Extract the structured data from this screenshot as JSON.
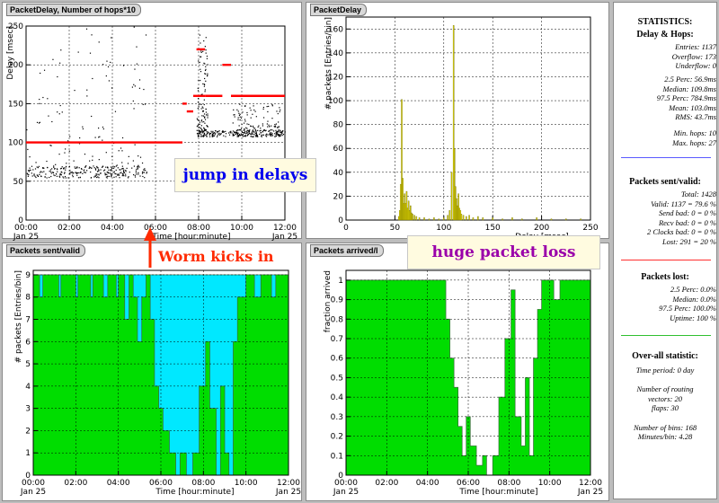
{
  "panels": {
    "tl": {
      "title": "PacketDelay, Number of hops*10"
    },
    "tr": {
      "title": "PacketDelay"
    },
    "bl": {
      "title": "Packets sent/valid"
    },
    "br": {
      "title": "Packets arrived/l"
    }
  },
  "annotations": {
    "jump": "jump in delays",
    "worm": "Worm kicks in",
    "loss": "huge packet loss"
  },
  "stats": {
    "title": "STATISTICS:",
    "delay_header": "Delay & Hops:",
    "delay_lines": [
      "Entries: 1137",
      "Overflow: 173",
      "Underflow: 0"
    ],
    "perc_lines": [
      "2.5 Perc:     56.9ms",
      "Median:   109.8ms",
      "97.5 Perc:   784.9ms",
      "Mean:   103.0ms",
      "RMS:     43.7ms"
    ],
    "hops_lines": [
      "Min. hops: 10",
      "Max. hops: 27"
    ],
    "sent_header": "Packets sent/valid:",
    "sent_lines": [
      "Total: 1428",
      "Valid: 1137 = 79.6 %",
      "Send bad: 0 = 0 %",
      "Recv bad: 0 = 0 %",
      "2 Clocks bad: 0 = 0 %",
      "Lost: 291 = 20 %"
    ],
    "lost_header": "Packets lost:",
    "lost_lines": [
      "2.5 Perc:      0.0%",
      "Median:      0.0%",
      "97.5 Perc:  100.0%",
      "Uptime: 100 %"
    ],
    "overall_header": "Over-all statistic:",
    "overall_lines": [
      "Time period: 0 day",
      "",
      "Number of routing",
      "vectors: 20",
      "flaps: 30",
      "",
      "Number of bins: 168",
      "Minutes/bin: 4.28"
    ],
    "colors": {
      "blue": "#5a5aff",
      "red": "#ff3030",
      "green": "#30c030"
    }
  },
  "chart_data": [
    {
      "type": "scatter",
      "id": "tl",
      "title": "PacketDelay, Number of hops*10",
      "xlabel": "Time [hour:minute]",
      "ylabel": "Delay [msec]",
      "xticks": [
        "00:00",
        "02:00",
        "04:00",
        "06:00",
        "08:00",
        "10:00",
        "12:00"
      ],
      "xsub": "Jan 25",
      "xlim": [
        0,
        12
      ],
      "ylim": [
        0,
        250
      ],
      "yticks": [
        0,
        50,
        100,
        150,
        200,
        250
      ],
      "grid": true,
      "series": [
        {
          "role": "delay",
          "color": "#000000",
          "clusters": [
            {
              "x": [
                0.0,
                5.6
              ],
              "y": [
                55,
                70
              ],
              "note": "dense band"
            },
            {
              "x": [
                0.0,
                5.6
              ],
              "y": [
                70,
                250
              ],
              "note": "sparse"
            },
            {
              "x": [
                7.9,
                12.0
              ],
              "y": [
                108,
                116
              ],
              "note": "dense band"
            },
            {
              "x": [
                7.9,
                8.4
              ],
              "y": [
                116,
                240
              ],
              "note": "sparse"
            },
            {
              "x": [
                9.5,
                11.8
              ],
              "y": [
                116,
                150
              ],
              "note": "sparse"
            }
          ]
        },
        {
          "role": "hops",
          "color": "#ff0000",
          "segments": [
            {
              "x": [
                0.0,
                7.25
              ],
              "y": 100
            },
            {
              "x": [
                7.25,
                7.45
              ],
              "y": 150
            },
            {
              "x": [
                7.45,
                7.75
              ],
              "y": 140
            },
            {
              "x": [
                7.75,
                8.3
              ],
              "y": 160
            },
            {
              "x": [
                7.9,
                8.3
              ],
              "y": 220
            },
            {
              "x": [
                8.3,
                9.1
              ],
              "y": 160
            },
            {
              "x": [
                9.1,
                9.5
              ],
              "y": 200
            },
            {
              "x": [
                9.5,
                12.0
              ],
              "y": 160
            }
          ]
        }
      ]
    },
    {
      "type": "bar",
      "id": "tr",
      "title": "PacketDelay",
      "xlabel": "Delay [msec]",
      "ylabel": "# packets [Entries/bin]",
      "xlim": [
        0,
        250
      ],
      "ylim": [
        0,
        170
      ],
      "xticks": [
        0,
        50,
        100,
        150,
        200,
        250
      ],
      "yticks": [
        0,
        20,
        40,
        60,
        80,
        100,
        120,
        140,
        160
      ],
      "grid": true,
      "bar_color": "#f2e400",
      "peaks": [
        {
          "x": 57,
          "value": 101
        },
        {
          "x": 110,
          "value": 163
        }
      ],
      "bins": [
        {
          "x": 54,
          "value": 3
        },
        {
          "x": 55,
          "value": 8
        },
        {
          "x": 56,
          "value": 30
        },
        {
          "x": 57,
          "value": 101
        },
        {
          "x": 58,
          "value": 35
        },
        {
          "x": 59,
          "value": 14
        },
        {
          "x": 60,
          "value": 22
        },
        {
          "x": 61,
          "value": 14
        },
        {
          "x": 62,
          "value": 24
        },
        {
          "x": 63,
          "value": 10
        },
        {
          "x": 64,
          "value": 16
        },
        {
          "x": 65,
          "value": 8
        },
        {
          "x": 66,
          "value": 12
        },
        {
          "x": 67,
          "value": 6
        },
        {
          "x": 68,
          "value": 5
        },
        {
          "x": 70,
          "value": 4
        },
        {
          "x": 72,
          "value": 3
        },
        {
          "x": 75,
          "value": 2
        },
        {
          "x": 80,
          "value": 2
        },
        {
          "x": 85,
          "value": 1
        },
        {
          "x": 90,
          "value": 2
        },
        {
          "x": 95,
          "value": 1
        },
        {
          "x": 100,
          "value": 2
        },
        {
          "x": 104,
          "value": 4
        },
        {
          "x": 106,
          "value": 8
        },
        {
          "x": 108,
          "value": 40
        },
        {
          "x": 110,
          "value": 163
        },
        {
          "x": 111,
          "value": 60
        },
        {
          "x": 112,
          "value": 28
        },
        {
          "x": 113,
          "value": 18
        },
        {
          "x": 114,
          "value": 12
        },
        {
          "x": 115,
          "value": 22
        },
        {
          "x": 116,
          "value": 10
        },
        {
          "x": 117,
          "value": 8
        },
        {
          "x": 118,
          "value": 5
        },
        {
          "x": 120,
          "value": 4
        },
        {
          "x": 123,
          "value": 3
        },
        {
          "x": 126,
          "value": 4
        },
        {
          "x": 130,
          "value": 2
        },
        {
          "x": 135,
          "value": 3
        },
        {
          "x": 140,
          "value": 2
        },
        {
          "x": 150,
          "value": 2
        },
        {
          "x": 160,
          "value": 1
        },
        {
          "x": 170,
          "value": 2
        },
        {
          "x": 180,
          "value": 1
        },
        {
          "x": 195,
          "value": 2
        },
        {
          "x": 210,
          "value": 1
        },
        {
          "x": 225,
          "value": 1
        },
        {
          "x": 240,
          "value": 1
        }
      ]
    },
    {
      "type": "area",
      "id": "bl",
      "title": "Packets sent/valid",
      "xlabel": "Time [hour:minute]",
      "ylabel": "# packets [Entries/bin]",
      "xticks": [
        "00:00",
        "02:00",
        "04:00",
        "06:00",
        "08:00",
        "10:00",
        "12:00"
      ],
      "xsub": "Jan 25",
      "xlim": [
        0,
        12
      ],
      "ylim": [
        0,
        9.2
      ],
      "yticks": [
        0,
        1,
        2,
        3,
        4,
        5,
        6,
        7,
        8,
        9
      ],
      "grid": true,
      "series": [
        {
          "name": "sent",
          "color": "#00e8ff",
          "steps": [
            [
              0,
              9
            ],
            [
              12,
              9
            ]
          ]
        },
        {
          "name": "valid",
          "color": "#00dd00",
          "steps": [
            [
              0,
              9
            ],
            [
              0.3,
              8
            ],
            [
              0.45,
              9
            ],
            [
              1.2,
              8
            ],
            [
              1.3,
              9
            ],
            [
              2.0,
              8
            ],
            [
              2.1,
              9
            ],
            [
              2.7,
              8
            ],
            [
              2.8,
              9
            ],
            [
              3.3,
              8
            ],
            [
              3.5,
              9
            ],
            [
              3.9,
              8
            ],
            [
              4.0,
              9
            ],
            [
              4.3,
              7
            ],
            [
              4.5,
              9
            ],
            [
              4.7,
              8
            ],
            [
              4.9,
              6
            ],
            [
              5.1,
              8
            ],
            [
              5.3,
              9
            ],
            [
              5.5,
              7
            ],
            [
              5.7,
              4
            ],
            [
              5.9,
              3
            ],
            [
              6.1,
              2
            ],
            [
              6.4,
              1
            ],
            [
              6.7,
              0
            ],
            [
              6.9,
              1
            ],
            [
              7.2,
              0
            ],
            [
              7.5,
              1
            ],
            [
              7.8,
              4
            ],
            [
              8.1,
              6
            ],
            [
              8.3,
              3
            ],
            [
              8.6,
              0
            ],
            [
              8.8,
              4
            ],
            [
              9.0,
              1
            ],
            [
              9.2,
              0
            ],
            [
              9.4,
              6
            ],
            [
              9.6,
              8
            ],
            [
              10.0,
              9
            ],
            [
              10.4,
              8
            ],
            [
              10.7,
              9
            ],
            [
              11.2,
              8
            ],
            [
              11.4,
              9
            ],
            [
              12.0,
              9
            ]
          ]
        }
      ]
    },
    {
      "type": "area",
      "id": "br",
      "title": "Packets arrived/l",
      "xlabel": "Time [hour:minute]",
      "ylabel": "fraction arrived",
      "xticks": [
        "00:00",
        "02:00",
        "04:00",
        "06:00",
        "08:00",
        "10:00",
        "12:00"
      ],
      "xsub": "Jan 25",
      "xlim": [
        0,
        12
      ],
      "ylim": [
        0,
        1.05
      ],
      "yticks": [
        0,
        0.1,
        0.2,
        0.3,
        0.4,
        0.5,
        0.6,
        0.7,
        0.8,
        0.9,
        1
      ],
      "grid": true,
      "series": [
        {
          "name": "arrived",
          "color": "#00dd00",
          "steps": [
            [
              0,
              1
            ],
            [
              4.7,
              1
            ],
            [
              4.9,
              0.8
            ],
            [
              5.1,
              0.6
            ],
            [
              5.3,
              0.45
            ],
            [
              5.5,
              0.25
            ],
            [
              5.7,
              0.1
            ],
            [
              5.9,
              0.3
            ],
            [
              6.1,
              0.15
            ],
            [
              6.4,
              0.05
            ],
            [
              6.7,
              0.1
            ],
            [
              6.9,
              0
            ],
            [
              7.2,
              0.1
            ],
            [
              7.5,
              0.4
            ],
            [
              7.8,
              0.7
            ],
            [
              8.1,
              0.95
            ],
            [
              8.3,
              0.3
            ],
            [
              8.6,
              0.15
            ],
            [
              8.8,
              0.5
            ],
            [
              9.0,
              0.1
            ],
            [
              9.2,
              0.6
            ],
            [
              9.4,
              0.85
            ],
            [
              9.6,
              1
            ],
            [
              10.2,
              0.9
            ],
            [
              10.5,
              1
            ],
            [
              12.0,
              1
            ]
          ]
        }
      ]
    }
  ]
}
